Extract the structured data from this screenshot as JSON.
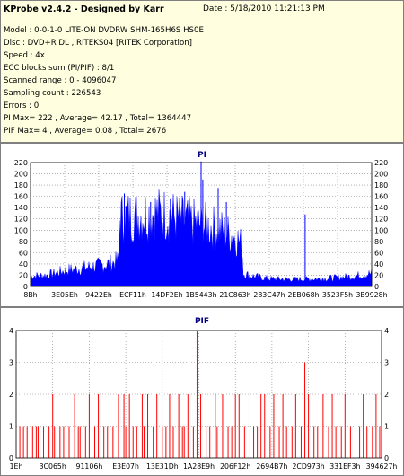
{
  "header": {
    "title": "KProbe v2.4.2 - Designed by Karr",
    "date": "Date : 5/18/2010 11:21:13 PM",
    "lines": [
      "Model : 0-0-1-0 LITE-ON DVDRW SHM-165H6S HS0E",
      "Disc : DVD+R DL , RITEKS04 [RITEK Corporation]",
      "Speed : 4x",
      "ECC blocks sum (PI/PIF) : 8/1",
      "Scanned range : 0 - 4096047",
      "Sampling count : 226543",
      "Errors : 0",
      "PI Max= 222 , Average= 42.17 , Total= 1364447",
      "PIF Max= 4 , Average= 0.08 , Total= 2676"
    ]
  },
  "colors": {
    "bg": "#ffffff",
    "info_bg": "#ffffe0",
    "pi_series": "#0000ff",
    "pif_series": "#ff0000",
    "grid": "#808080",
    "title": "#000080"
  },
  "chart_data": [
    {
      "type": "area",
      "title": "PI",
      "x_tick_labels": [
        "8Bh",
        "3E05Eh",
        "9422Eh",
        "ECF11h",
        "14DF2Eh",
        "1B5443h",
        "21C863h",
        "283C47h",
        "2EB068h",
        "3523F5h",
        "3B9928h"
      ],
      "y_ticks": [
        0,
        20,
        40,
        60,
        80,
        100,
        120,
        140,
        160,
        180,
        200,
        220
      ],
      "ylim": [
        0,
        220
      ],
      "grid": true,
      "envelope": {
        "x": [
          0,
          0.05,
          0.1,
          0.15,
          0.2,
          0.24,
          0.259,
          0.26,
          0.3,
          0.35,
          0.4,
          0.45,
          0.5,
          0.55,
          0.6,
          0.62,
          0.623,
          0.65,
          0.7,
          0.75,
          0.8,
          0.85,
          0.9,
          0.95,
          1.0
        ],
        "y": [
          20,
          22,
          30,
          35,
          40,
          45,
          50,
          130,
          135,
          140,
          138,
          125,
          118,
          110,
          95,
          80,
          25,
          20,
          15,
          14,
          14,
          15,
          17,
          20,
          25
        ]
      },
      "spikes": [
        {
          "x": 0.275,
          "y": 165
        },
        {
          "x": 0.352,
          "y": 150
        },
        {
          "x": 0.41,
          "y": 155
        },
        {
          "x": 0.452,
          "y": 168
        },
        {
          "x": 0.5,
          "y": 222
        },
        {
          "x": 0.505,
          "y": 190
        },
        {
          "x": 0.55,
          "y": 175
        },
        {
          "x": 0.574,
          "y": 150
        },
        {
          "x": 0.805,
          "y": 128
        }
      ]
    },
    {
      "type": "bar",
      "title": "PIF",
      "x_tick_labels": [
        "1Eh",
        "3C065h",
        "91106h",
        "E3E07h",
        "13E31Dh",
        "1A28E9h",
        "206F12h",
        "2694B7h",
        "2CD973h",
        "331EF3h",
        "394627h"
      ],
      "y_ticks": [
        0,
        1,
        2,
        3,
        4
      ],
      "ylim": [
        0,
        4
      ],
      "grid": true,
      "x_positions": [
        0.01,
        0.02,
        0.03,
        0.045,
        0.055,
        0.06,
        0.075,
        0.09,
        0.1,
        0.105,
        0.12,
        0.13,
        0.145,
        0.16,
        0.17,
        0.175,
        0.19,
        0.2,
        0.215,
        0.225,
        0.24,
        0.25,
        0.265,
        0.28,
        0.295,
        0.3,
        0.31,
        0.32,
        0.33,
        0.345,
        0.35,
        0.36,
        0.375,
        0.385,
        0.4,
        0.41,
        0.42,
        0.43,
        0.445,
        0.455,
        0.46,
        0.47,
        0.485,
        0.495,
        0.505,
        0.52,
        0.53,
        0.545,
        0.55,
        0.565,
        0.58,
        0.59,
        0.6,
        0.61,
        0.625,
        0.64,
        0.65,
        0.66,
        0.67,
        0.68,
        0.695,
        0.705,
        0.72,
        0.73,
        0.74,
        0.755,
        0.765,
        0.78,
        0.79,
        0.8,
        0.815,
        0.825,
        0.84,
        0.855,
        0.865,
        0.875,
        0.89,
        0.9,
        0.915,
        0.93,
        0.94,
        0.95,
        0.96,
        0.975,
        0.985,
        0.995
      ],
      "values": [
        1,
        1,
        1,
        1,
        1,
        1,
        1,
        1,
        2,
        1,
        1,
        1,
        1,
        2,
        1,
        1,
        1,
        2,
        1,
        2,
        1,
        1,
        1,
        2,
        2,
        1,
        2,
        1,
        1,
        2,
        1,
        2,
        1,
        2,
        1,
        1,
        2,
        1,
        2,
        1,
        1,
        2,
        1,
        4,
        2,
        1,
        1,
        2,
        1,
        2,
        1,
        1,
        2,
        2,
        1,
        2,
        1,
        1,
        2,
        2,
        1,
        2,
        1,
        2,
        1,
        1,
        2,
        1,
        3,
        2,
        1,
        1,
        2,
        1,
        2,
        1,
        1,
        2,
        1,
        2,
        1,
        2,
        1,
        1,
        2,
        1
      ]
    }
  ]
}
